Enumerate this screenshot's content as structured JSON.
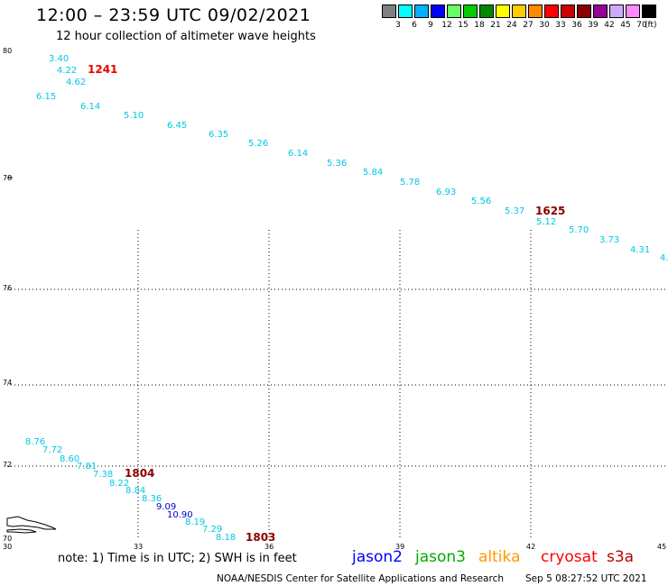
{
  "header": {
    "title": "12:00 – 23:59 UTC 09/02/2021",
    "subtitle": "12 hour collection of altimeter wave heights"
  },
  "legend": {
    "unit": "(ft)",
    "bins": [
      {
        "label": "3",
        "color": "#808080"
      },
      {
        "label": "6",
        "color": "#00ffff"
      },
      {
        "label": "9",
        "color": "#00b2ff"
      },
      {
        "label": "12",
        "color": "#0000ff"
      },
      {
        "label": "15",
        "color": "#66ff66"
      },
      {
        "label": "18",
        "color": "#00cc00"
      },
      {
        "label": "21",
        "color": "#008800"
      },
      {
        "label": "24",
        "color": "#ffff00"
      },
      {
        "label": "27",
        "color": "#ffcc00"
      },
      {
        "label": "30",
        "color": "#ff8800"
      },
      {
        "label": "33",
        "color": "#ff0000"
      },
      {
        "label": "36",
        "color": "#cc0000"
      },
      {
        "label": "39",
        "color": "#880000"
      },
      {
        "label": "42",
        "color": "#990099"
      },
      {
        "label": "45",
        "color": "#ccaaff"
      },
      {
        "label": "70",
        "color": "#ff88ff"
      },
      {
        "label": "",
        "color": "#000000"
      }
    ]
  },
  "axes": {
    "lat_labels": [
      "80",
      "78",
      "76",
      "74",
      "72",
      "70"
    ],
    "lon_labels": [
      "30",
      "33",
      "36",
      "39",
      "42",
      "45"
    ]
  },
  "tracks": {
    "colors": {
      "cyan": "#00c8e6",
      "blue": "#0000cc",
      "time_red": "#ee0000",
      "time_dark": "#880000"
    },
    "wave_values": [
      {
        "v": "3.40",
        "c": "cyan"
      },
      {
        "v": "4.22",
        "c": "cyan"
      },
      {
        "v": "4.62",
        "c": "cyan"
      },
      {
        "v": "6.15",
        "c": "cyan"
      },
      {
        "v": "6.14",
        "c": "cyan"
      },
      {
        "v": "5.10",
        "c": "cyan"
      },
      {
        "v": "6.45",
        "c": "cyan"
      },
      {
        "v": "6.35",
        "c": "cyan"
      },
      {
        "v": "5.26",
        "c": "cyan"
      },
      {
        "v": "6.14",
        "c": "cyan"
      },
      {
        "v": "5.36",
        "c": "cyan"
      },
      {
        "v": "5.84",
        "c": "cyan"
      },
      {
        "v": "5.78",
        "c": "cyan"
      },
      {
        "v": "6.93",
        "c": "cyan"
      },
      {
        "v": "5.56",
        "c": "cyan"
      },
      {
        "v": "5.37",
        "c": "cyan"
      },
      {
        "v": "5.12",
        "c": "cyan"
      },
      {
        "v": "5.70",
        "c": "cyan"
      },
      {
        "v": "3.73",
        "c": "cyan"
      },
      {
        "v": "4.31",
        "c": "cyan"
      },
      {
        "v": "4.",
        "c": "cyan"
      },
      {
        "v": "8.76",
        "c": "cyan"
      },
      {
        "v": "7.72",
        "c": "cyan"
      },
      {
        "v": "8.60",
        "c": "cyan"
      },
      {
        "v": "7.81",
        "c": "cyan"
      },
      {
        "v": "7.38",
        "c": "cyan"
      },
      {
        "v": "8.22",
        "c": "cyan"
      },
      {
        "v": "8.84",
        "c": "cyan"
      },
      {
        "v": "8.36",
        "c": "cyan"
      },
      {
        "v": "9.09",
        "c": "blue"
      },
      {
        "v": "10.90",
        "c": "blue"
      },
      {
        "v": "8.19",
        "c": "cyan"
      },
      {
        "v": "7.29",
        "c": "cyan"
      },
      {
        "v": "8.18",
        "c": "cyan"
      }
    ],
    "times": [
      {
        "t": "1241",
        "c": "time_red"
      },
      {
        "t": "1625",
        "c": "time_dark"
      },
      {
        "t": "1804",
        "c": "time_dark"
      },
      {
        "t": "1803",
        "c": "time_dark"
      }
    ]
  },
  "footer": {
    "note": "note: 1) Time is in UTC; 2) SWH is in feet",
    "satellites": [
      {
        "name": "jason2",
        "color": "#0000ff"
      },
      {
        "name": "jason3",
        "color": "#00aa00"
      },
      {
        "name": "altika",
        "color": "#ff9900"
      },
      {
        "name": "cryosat",
        "color": "#ff0000"
      },
      {
        "name": "s3a",
        "color": "#bb0000"
      }
    ],
    "credit": "NOAA/NESDIS Center for Satellite Applications and Research",
    "timestamp": "Sep  5 08:27:52 UTC 2021"
  }
}
